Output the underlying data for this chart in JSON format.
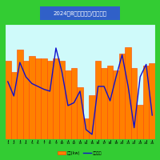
{
  "title": "2024年8月　発電量/日照時間",
  "days": [
    1,
    2,
    3,
    4,
    5,
    6,
    7,
    8,
    9,
    10,
    11,
    12,
    13,
    14,
    15,
    16,
    17,
    18,
    19,
    20,
    21,
    22,
    23,
    24,
    25
  ],
  "power_kwh": [
    6.8,
    5.8,
    7.8,
    6.8,
    7.2,
    7.0,
    7.0,
    6.8,
    7.0,
    6.8,
    6.0,
    6.2,
    4.5,
    1.8,
    3.8,
    6.8,
    6.2,
    6.4,
    6.0,
    7.4,
    8.0,
    6.2,
    3.0,
    6.4,
    6.6
  ],
  "sunshine_h": [
    6.0,
    4.5,
    8.0,
    6.5,
    5.8,
    5.5,
    5.2,
    5.0,
    9.5,
    7.0,
    3.5,
    3.8,
    5.0,
    1.0,
    0.5,
    5.5,
    5.5,
    4.0,
    6.5,
    8.8,
    5.5,
    1.2,
    6.5,
    7.8,
    2.5
  ],
  "bar_color": "#FF8000",
  "bar_edge_color": "#FF4500",
  "line_color": "#1010CC",
  "bg_color": "#CFFAFA",
  "title_bg": "#3060C8",
  "title_fg": "#FFFFFF",
  "legend_power": "発電(kw)",
  "legend_sun": "日照時間",
  "outer_border_color": "#33CC33",
  "inner_border_color": "#33CC33",
  "ylim_bar": [
    0,
    10
  ],
  "ylim_line": [
    0,
    12
  ]
}
